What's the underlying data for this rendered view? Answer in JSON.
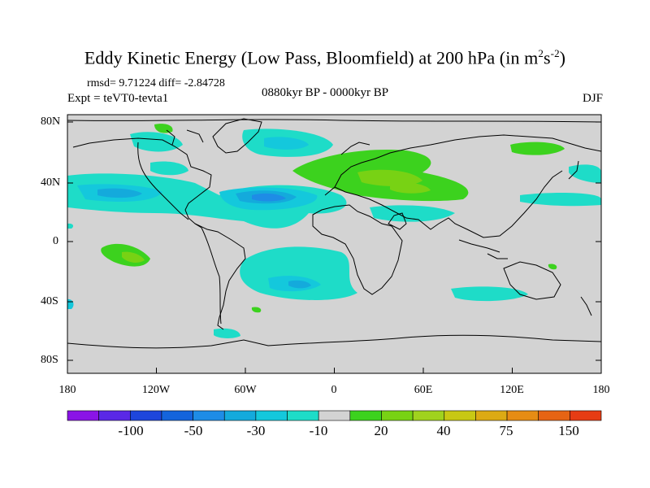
{
  "title": {
    "main": "Eddy Kinetic Energy (Low Pass, Bloomfield) at 200 hPa (in m",
    "sup1": "2",
    "mid": "s",
    "sup2": "-2",
    "end": ")"
  },
  "stats": "rmsd= 9.71224 diff= -2.84728",
  "expt": "Expt = teVT0-tevta1",
  "period": "0880kyr BP - 0000kyr BP",
  "season": "DJF",
  "map": {
    "lat_labels": [
      "80N",
      "40N",
      "0",
      "40S",
      "80S"
    ],
    "lon_labels": [
      "180",
      "120W",
      "60W",
      "0",
      "60E",
      "120E",
      "180"
    ],
    "background_color": "#d3d3d3"
  },
  "colorbar": {
    "colors": [
      "#8a14e6",
      "#5a28e6",
      "#1e46dc",
      "#1464dc",
      "#1e8ce6",
      "#14aadc",
      "#14c8dc",
      "#1edcc8",
      "#d3d3d3",
      "#3cd21e",
      "#78d214",
      "#a0d21e",
      "#c8c814",
      "#dcaa14",
      "#e68c14",
      "#e66414",
      "#e63c14"
    ],
    "labels": [
      "-100",
      "-50",
      "-30",
      "-10",
      "20",
      "40",
      "75",
      "150"
    ]
  }
}
